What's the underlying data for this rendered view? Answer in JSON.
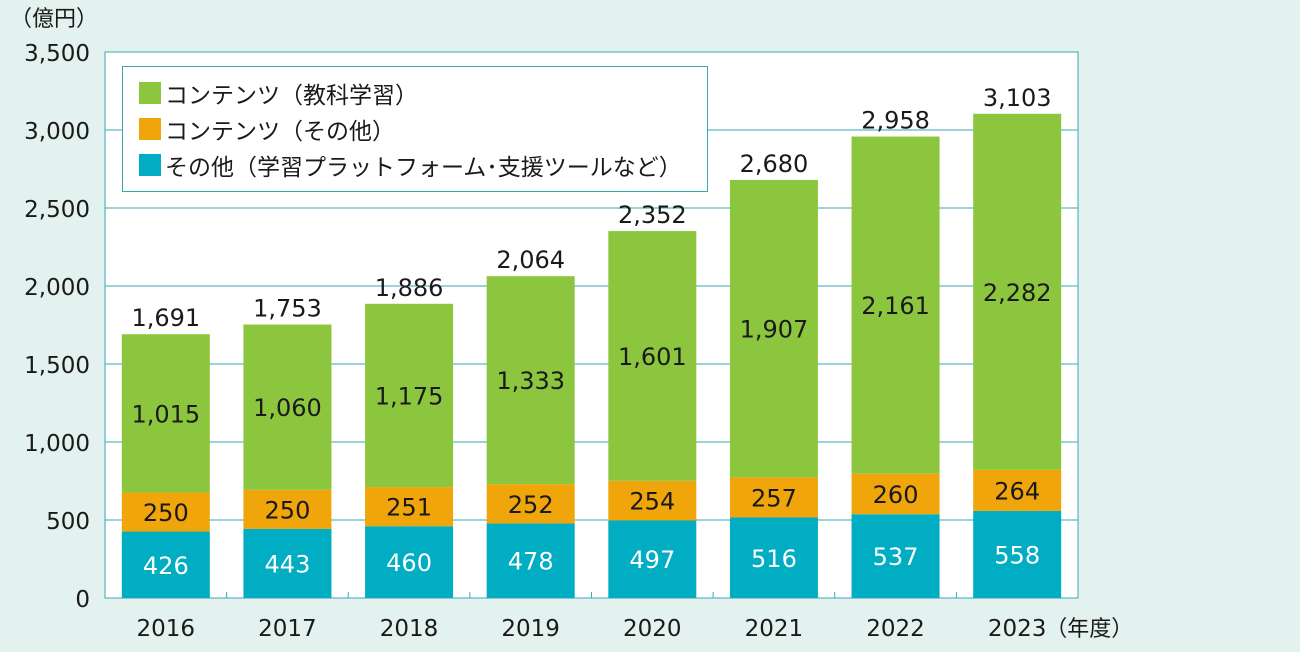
{
  "chart_data": {
    "type": "bar",
    "stacked": true,
    "unit_label": "（億円）",
    "x_unit_label": "（年度）",
    "categories": [
      "2016",
      "2017",
      "2018",
      "2019",
      "2020",
      "2021",
      "2022",
      "2023"
    ],
    "series": [
      {
        "name": "その他（学習プラットフォーム･支援ツールなど）",
        "color": "#00adc2",
        "values": [
          426,
          443,
          460,
          478,
          497,
          516,
          537,
          558
        ]
      },
      {
        "name": "コンテンツ（その他）",
        "color": "#f0a50a",
        "values": [
          250,
          250,
          251,
          252,
          254,
          257,
          260,
          264
        ]
      },
      {
        "name": "コンテンツ（教科学習）",
        "color": "#8cc63e",
        "values": [
          1015,
          1060,
          1175,
          1333,
          1601,
          1907,
          2161,
          2282
        ]
      }
    ],
    "totals": [
      1691,
      1753,
      1886,
      2064,
      2352,
      2680,
      2958,
      3103
    ],
    "total_labels": [
      "1,691",
      "1,753",
      "1,886",
      "2,064",
      "2,352",
      "2,680",
      "2,958",
      "3,103"
    ],
    "value_labels": [
      [
        "426",
        "443",
        "460",
        "478",
        "497",
        "516",
        "537",
        "558"
      ],
      [
        "250",
        "250",
        "251",
        "252",
        "254",
        "257",
        "260",
        "264"
      ],
      [
        "1,015",
        "1,060",
        "1,175",
        "1,333",
        "1,601",
        "1,907",
        "2,161",
        "2,282"
      ]
    ],
    "ylim": [
      0,
      3500
    ],
    "y_ticks": [
      0,
      500,
      1000,
      1500,
      2000,
      2500,
      3000,
      3500
    ],
    "y_tick_labels": [
      "0",
      "500",
      "1,000",
      "1,500",
      "2,000",
      "2,500",
      "3,000",
      "3,500"
    ],
    "grid": true,
    "legend_position": "top-left"
  },
  "legend": {
    "items": [
      {
        "label": "コンテンツ（教科学習）",
        "color": "#8cc63e"
      },
      {
        "label": "コンテンツ（その他）",
        "color": "#f0a50a"
      },
      {
        "label": "その他（学習プラットフォーム･支援ツールなど）",
        "color": "#00adc2"
      }
    ]
  },
  "colors": {
    "background": "#e3f1ef",
    "grid": "#3aa7b4",
    "text": "#1a1a1a",
    "inner_label": "#ffffff"
  }
}
